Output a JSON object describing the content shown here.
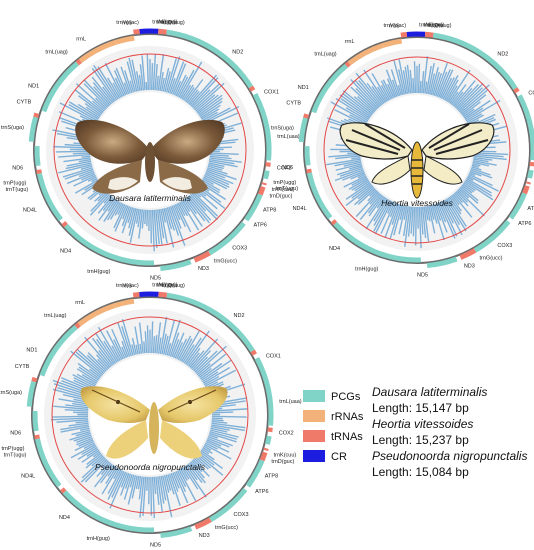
{
  "legend": {
    "items": [
      {
        "label": "PCGs",
        "color": "#7fd3c7"
      },
      {
        "label": "rRNAs",
        "color": "#f2b27a"
      },
      {
        "label": "tRNAs",
        "color": "#f07a6a"
      },
      {
        "label": "CR",
        "color": "#1d1de0"
      }
    ]
  },
  "info": {
    "sp1_name": "Dausara latiterminalis",
    "sp1_length": "Length: 15,147 bp",
    "sp2_name": "Heortia vitessoides",
    "sp2_length": "Length: 15,237 bp",
    "sp3_name": "Pseudonoorda nigropunctalis",
    "sp3_length": "Length: 15,084 bp"
  },
  "maps": [
    {
      "species": "Dausara latiterminalis",
      "labels": [
        "ND2",
        "COX1",
        "trnL(uaa)",
        "COX2",
        "trnK(cuu)",
        "trnD(guc)",
        "ATP8",
        "ATP6",
        "COX3",
        "trnG(ucc)",
        "ND3",
        "ND5",
        "trnH(gug)",
        "ND4",
        "ND4L",
        "trnT(ugu)",
        "trnP(ugg)",
        "ND6",
        "CYTB",
        "trnS(uga)",
        "ND1",
        "trnL(uag)",
        "rrnL",
        "rrnS",
        "trnV(uac)",
        "trnM(cau)",
        "trnI(gau)",
        "trnQ(uug)"
      ]
    },
    {
      "species": "Heortia vitessoides",
      "labels": [
        "ND2",
        "COX1",
        "trnL(uaa)",
        "COX2",
        "trnK(cuu)",
        "trnD(guc)",
        "ATP8",
        "ATP6",
        "COX3",
        "trnG(ucc)",
        "ND3",
        "ND5",
        "trnH(gug)",
        "ND4",
        "ND4L",
        "trnT(ugu)",
        "trnP(ugg)",
        "ND6",
        "CYTB",
        "trnS(uga)",
        "ND1",
        "trnL(uag)",
        "rrnL",
        "rrnS",
        "trnV(uac)",
        "trnM(cau)",
        "trnI(gau)",
        "trnQ(uug)"
      ]
    },
    {
      "species": "Pseudonoorda nigropunctalis",
      "labels": [
        "ND2",
        "COX1",
        "trnL(uaa)",
        "COX2",
        "trnK(cuu)",
        "trnD(guc)",
        "ATP8",
        "ATP6",
        "COX3",
        "trnG(ucc)",
        "ND3",
        "ND5",
        "trnH(gug)",
        "ND4",
        "ND4L",
        "trnT(ugu)",
        "trnP(ugg)",
        "ND6",
        "CYTB",
        "trnS(uga)",
        "ND1",
        "trnL(uag)",
        "rrnL",
        "rrnS",
        "trnV(uac)",
        "trnM(cau)",
        "trnI(gau)",
        "trnQ(uug)"
      ]
    }
  ]
}
